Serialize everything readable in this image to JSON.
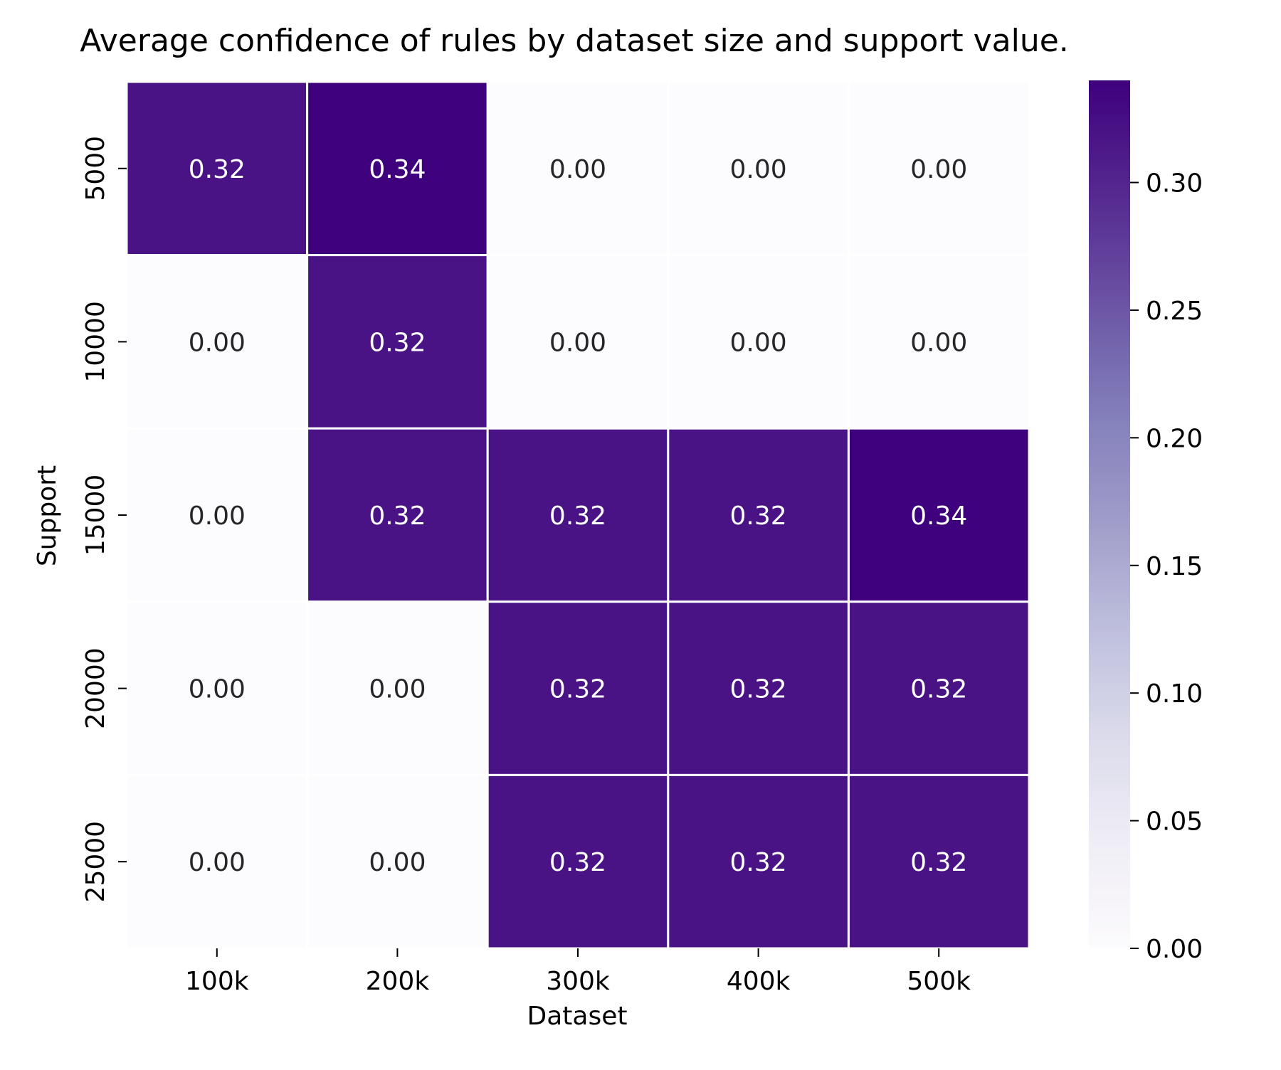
{
  "chart_data": {
    "type": "heatmap",
    "title": "Average confidence of rules by dataset size and support value.",
    "xlabel": "Dataset",
    "ylabel": "Support",
    "x_categories": [
      "100k",
      "200k",
      "300k",
      "400k",
      "500k"
    ],
    "y_categories": [
      "5000",
      "10000",
      "15000",
      "20000",
      "25000"
    ],
    "values": [
      [
        0.32,
        0.34,
        0.0,
        0.0,
        0.0
      ],
      [
        0.0,
        0.32,
        0.0,
        0.0,
        0.0
      ],
      [
        0.0,
        0.32,
        0.32,
        0.32,
        0.34
      ],
      [
        0.0,
        0.0,
        0.32,
        0.32,
        0.32
      ],
      [
        0.0,
        0.0,
        0.32,
        0.32,
        0.32
      ]
    ],
    "value_format": "0.00",
    "colormap": "Purples",
    "colors": {
      "low": "#fcfbfd",
      "high": "#3f007d",
      "text_on_dark": "#ffffff",
      "text_on_light": "#262626",
      "cell_border": "#ffffff"
    },
    "colorbar": {
      "range": [
        0.0,
        0.34
      ],
      "ticks": [
        0.0,
        0.05,
        0.1,
        0.15,
        0.2,
        0.25,
        0.3
      ],
      "tick_labels": [
        "0.00",
        "0.05",
        "0.10",
        "0.15",
        "0.20",
        "0.25",
        "0.30"
      ]
    }
  }
}
